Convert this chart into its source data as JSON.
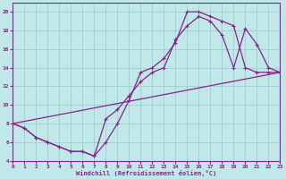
{
  "xlabel": "Windchill (Refroidissement éolien,°C)",
  "bg_color": "#c0e8e8",
  "line_color": "#882288",
  "grid_color": "#98c8c8",
  "xlim": [
    0,
    23
  ],
  "ylim": [
    4,
    21
  ],
  "xticks": [
    0,
    1,
    2,
    3,
    4,
    5,
    6,
    7,
    8,
    9,
    10,
    11,
    12,
    13,
    14,
    15,
    16,
    17,
    18,
    19,
    20,
    21,
    22,
    23
  ],
  "yticks": [
    4,
    6,
    8,
    10,
    12,
    14,
    16,
    18,
    20
  ],
  "line1_x": [
    0,
    1,
    2,
    3,
    4,
    5,
    6,
    7,
    8,
    9,
    10,
    11,
    12,
    13,
    14,
    15,
    16,
    17,
    18,
    19,
    20,
    21,
    22,
    23
  ],
  "line1_y": [
    8,
    7.5,
    6.5,
    6,
    5.5,
    5,
    5,
    4.5,
    6,
    8,
    10.5,
    13.5,
    14,
    15,
    16.7,
    20,
    20,
    19.5,
    19,
    18.5,
    14,
    13.5,
    13.5,
    13.5
  ],
  "line2_x": [
    0,
    1,
    2,
    3,
    4,
    5,
    6,
    7,
    8,
    9,
    10,
    11,
    12,
    13,
    14,
    15,
    16,
    17,
    18,
    19,
    20,
    21,
    22,
    23
  ],
  "line2_y": [
    8,
    7.5,
    6.5,
    6,
    5.5,
    5,
    5,
    4.5,
    8.5,
    9.5,
    11,
    12.5,
    13.5,
    14,
    17,
    18.5,
    19.5,
    19,
    17.5,
    14,
    18.2,
    16.5,
    14,
    13.5
  ],
  "line3_x": [
    0,
    23
  ],
  "line3_y": [
    8,
    13.5
  ]
}
